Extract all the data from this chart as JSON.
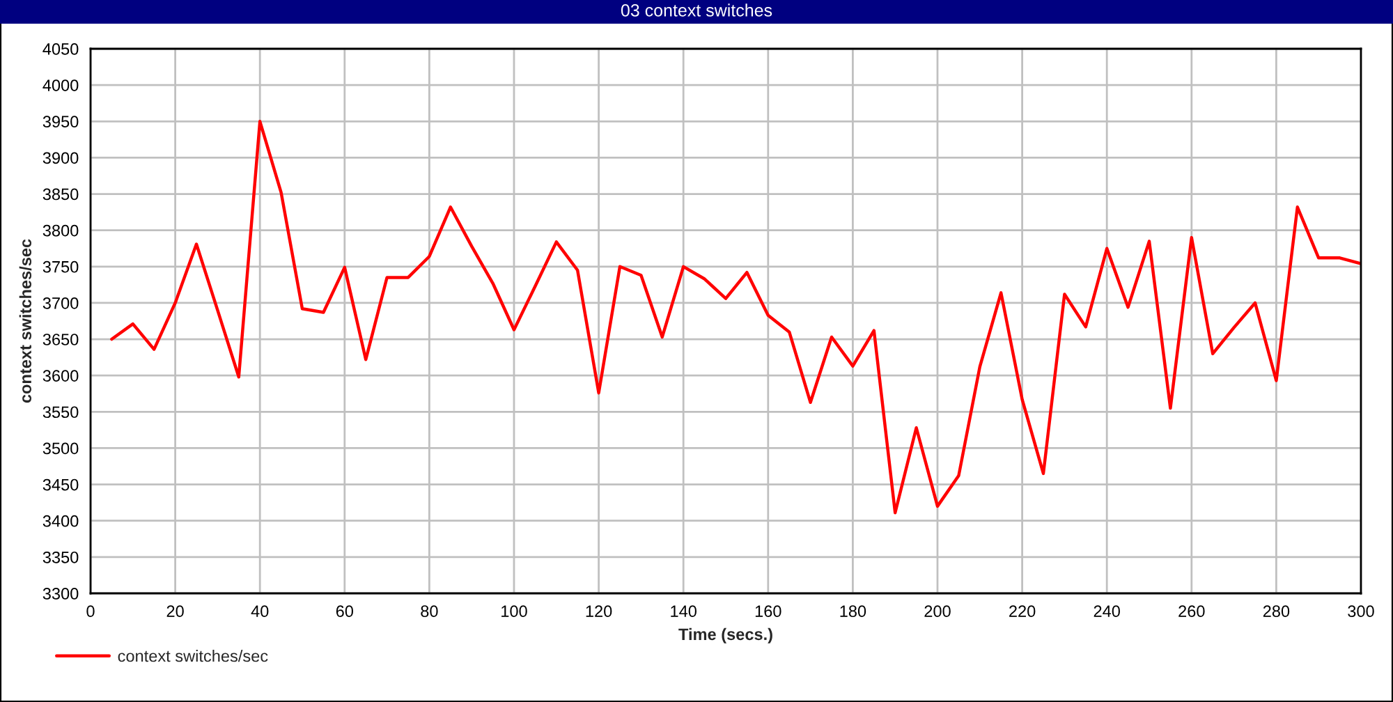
{
  "chart_data": {
    "type": "line",
    "title": "03 context switches",
    "xlabel": "Time (secs.)",
    "ylabel": "context switches/sec",
    "x": [
      5,
      10,
      15,
      20,
      25,
      30,
      35,
      40,
      45,
      50,
      55,
      60,
      65,
      70,
      75,
      80,
      85,
      90,
      95,
      100,
      105,
      110,
      115,
      120,
      125,
      130,
      135,
      140,
      145,
      150,
      155,
      160,
      165,
      170,
      175,
      180,
      185,
      190,
      195,
      200,
      205,
      210,
      215,
      220,
      225,
      230,
      235,
      240,
      245,
      250,
      255,
      260,
      265,
      270,
      275,
      280,
      285,
      290,
      295,
      300
    ],
    "series": [
      {
        "name": "context switches/sec",
        "color": "#ff0000",
        "values": [
          3650,
          3671,
          3636,
          3700,
          3781,
          3690,
          3598,
          3950,
          3852,
          3692,
          3687,
          3749,
          3622,
          3735,
          3735,
          3764,
          3832,
          3778,
          3727,
          3663,
          3723,
          3784,
          3745,
          3576,
          3750,
          3738,
          3653,
          3750,
          3733,
          3706,
          3742,
          3683,
          3660,
          3563,
          3653,
          3613,
          3662,
          3411,
          3528,
          3420,
          3462,
          3612,
          3714,
          3567,
          3465,
          3712,
          3667,
          3775,
          3694,
          3785,
          3555,
          3790,
          3630,
          3666,
          3700,
          3593,
          3832,
          3762,
          3762,
          3754
        ]
      }
    ],
    "xlim": [
      0,
      300
    ],
    "ylim": [
      3300,
      4050
    ],
    "xticks": [
      0,
      20,
      40,
      60,
      80,
      100,
      120,
      140,
      160,
      180,
      200,
      220,
      240,
      260,
      280,
      300
    ],
    "yticks": [
      3300,
      3350,
      3400,
      3450,
      3500,
      3550,
      3600,
      3650,
      3700,
      3750,
      3800,
      3850,
      3900,
      3950,
      4000,
      4050
    ],
    "grid": true,
    "legend": "bottom left",
    "marker": "none",
    "line_style": "solid"
  }
}
